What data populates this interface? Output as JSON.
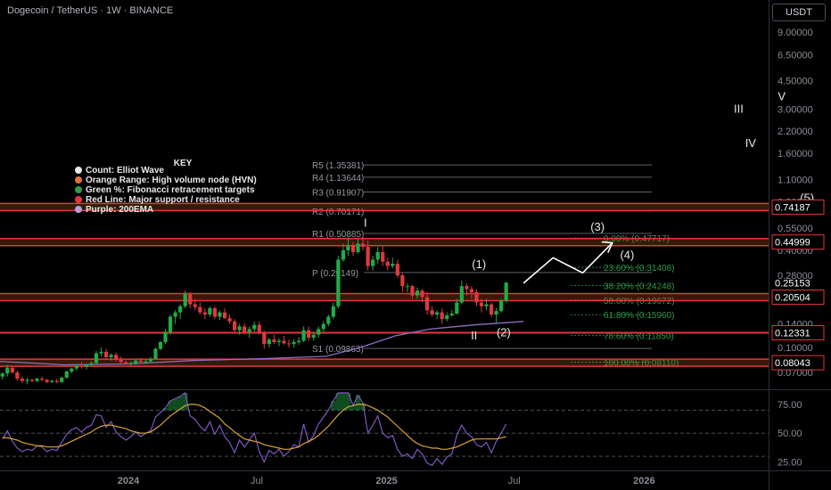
{
  "header": {
    "title": "Dogecoin / TetherUS · 1W · BINANCE",
    "currency": "USDT"
  },
  "colors": {
    "up": "#22ab46",
    "down": "#e0383e",
    "hvn": "#c95a1f",
    "support": "#e0383e",
    "ema": "#8e6fc1",
    "pivot": "#9598a1",
    "fib": "#2f7d44",
    "rsi": "#7e57c2",
    "rsi_ma": "#d9a33a"
  },
  "legend": {
    "title": "KEY",
    "items": [
      {
        "label": "Count: Elliot Wave",
        "color": "#e8e8e8"
      },
      {
        "label": "Orange Range: High volume node (HVN)",
        "color": "#e0703a"
      },
      {
        "label": "Green %: Fibonacci retracement targets",
        "color": "#2e9a4a"
      },
      {
        "label": "Red Line: Major support / resistance",
        "color": "#e0383e"
      },
      {
        "label": "Purple: 200EMA",
        "color": "#b39ddb"
      }
    ]
  },
  "chart_data": [
    {
      "type": "candlestick",
      "scale": "log",
      "ylim": [
        0.055,
        10.5
      ],
      "x_labels": [
        "2024",
        "Jul",
        "2025",
        "Jul",
        "2026"
      ],
      "y_ticks": [
        "9.00000",
        "6.50000",
        "4.50000",
        "3.00000",
        "2.20000",
        "1.60000",
        "1.10000",
        "0.80000",
        "0.55000",
        "0.40000",
        "0.28000",
        "0.14000",
        "0.10000",
        "0.07000"
      ],
      "y_tick_values": [
        9.0,
        6.5,
        4.5,
        3.0,
        2.2,
        1.6,
        1.1,
        0.8,
        0.55,
        0.4,
        0.28,
        0.14,
        0.1,
        0.07
      ],
      "price_labels": [
        {
          "text": "0.74187",
          "value": 0.74187,
          "style": "box"
        },
        {
          "text": "0.44999",
          "value": 0.44999,
          "style": "box"
        },
        {
          "text": "0.25153",
          "value": 0.25153,
          "style": "plain"
        },
        {
          "text": "0.20504",
          "value": 0.20504,
          "style": "box"
        },
        {
          "text": "0.12331",
          "value": 0.12331,
          "style": "box"
        },
        {
          "text": "0.08043",
          "value": 0.08043,
          "style": "box"
        }
      ],
      "levels": [
        {
          "value": 0.74187,
          "kind": "hvn"
        },
        {
          "value": 0.44999,
          "kind": "hvn"
        },
        {
          "value": 0.20504,
          "kind": "hvn"
        },
        {
          "value": 0.12331,
          "kind": "support"
        },
        {
          "value": 0.08043,
          "kind": "hvn"
        }
      ],
      "pivots": [
        {
          "label": "R5 (1.35381)",
          "value": 1.35381
        },
        {
          "label": "R4 (1.13644)",
          "value": 1.13644
        },
        {
          "label": "R3 (0.91907)",
          "value": 0.91907
        },
        {
          "label": "R2 (0.70171)",
          "value": 0.70171
        },
        {
          "label": "R1 (0.50885)",
          "value": 0.50885
        },
        {
          "label": "P (0.29149)",
          "value": 0.29149
        },
        {
          "label": "S1 (0.09863)",
          "value": 0.09863
        }
      ],
      "fibs": [
        {
          "label": "0.00% (0.47717)",
          "value": 0.47717
        },
        {
          "label": "23.60% (0.31408)",
          "value": 0.31408
        },
        {
          "label": "38.20% (0.24248)",
          "value": 0.24248
        },
        {
          "label": "50.00% (0.19672)",
          "value": 0.19672
        },
        {
          "label": "61.80% (0.15960)",
          "value": 0.1596
        },
        {
          "label": "78.60% (0.11850)",
          "value": 0.1185
        },
        {
          "label": "100.00% (0.08110)",
          "value": 0.0811
        }
      ],
      "waves": [
        {
          "label": "I",
          "x": "2024-12-02",
          "y": 0.56
        },
        {
          "label": "II",
          "x": "2025-05-05",
          "y": 0.112
        },
        {
          "label": "III",
          "x": "2026-05-15",
          "y": 2.85
        },
        {
          "label": "IV",
          "x": "2026-06-01",
          "y": 1.75
        },
        {
          "label": "V",
          "x": "2026-07-15",
          "y": 3.4
        },
        {
          "label": "(1)",
          "x": "2025-05-12",
          "y": 0.31
        },
        {
          "label": "(2)",
          "x": "2025-06-16",
          "y": 0.117
        },
        {
          "label": "(3)",
          "x": "2025-10-27",
          "y": 0.53
        },
        {
          "label": "(4)",
          "x": "2025-12-08",
          "y": 0.355
        },
        {
          "label": "(5)",
          "x": "2026-08-20",
          "y": 0.8
        }
      ],
      "projection": [
        {
          "x": "2025-07-14",
          "y": 0.25
        },
        {
          "x": "2025-08-25",
          "y": 0.36
        },
        {
          "x": "2025-10-06",
          "y": 0.29
        },
        {
          "x": "2025-11-17",
          "y": 0.445
        }
      ],
      "ema200": [
        {
          "x": "2023-07-03",
          "y": 0.082
        },
        {
          "x": "2023-10-02",
          "y": 0.078
        },
        {
          "x": "2024-01-01",
          "y": 0.079
        },
        {
          "x": "2024-04-01",
          "y": 0.083
        },
        {
          "x": "2024-07-01",
          "y": 0.085
        },
        {
          "x": "2024-10-07",
          "y": 0.088
        },
        {
          "x": "2024-11-25",
          "y": 0.1
        },
        {
          "x": "2025-01-13",
          "y": 0.118
        },
        {
          "x": "2025-03-03",
          "y": 0.13
        },
        {
          "x": "2025-05-05",
          "y": 0.138
        },
        {
          "x": "2025-07-14",
          "y": 0.145
        }
      ],
      "candles_weekly_from": "2023-07-03",
      "candles": [
        [
          0.066,
          0.07,
          0.063,
          0.069
        ],
        [
          0.069,
          0.078,
          0.066,
          0.075
        ],
        [
          0.075,
          0.077,
          0.069,
          0.07
        ],
        [
          0.07,
          0.072,
          0.062,
          0.064
        ],
        [
          0.064,
          0.066,
          0.06,
          0.062
        ],
        [
          0.062,
          0.065,
          0.059,
          0.063
        ],
        [
          0.063,
          0.064,
          0.061,
          0.062
        ],
        [
          0.062,
          0.065,
          0.061,
          0.064
        ],
        [
          0.064,
          0.066,
          0.062,
          0.063
        ],
        [
          0.063,
          0.064,
          0.06,
          0.061
        ],
        [
          0.061,
          0.063,
          0.06,
          0.062
        ],
        [
          0.062,
          0.064,
          0.06,
          0.061
        ],
        [
          0.061,
          0.066,
          0.06,
          0.065
        ],
        [
          0.065,
          0.072,
          0.064,
          0.071
        ],
        [
          0.071,
          0.075,
          0.069,
          0.074
        ],
        [
          0.074,
          0.079,
          0.072,
          0.077
        ],
        [
          0.077,
          0.081,
          0.074,
          0.076
        ],
        [
          0.076,
          0.079,
          0.073,
          0.078
        ],
        [
          0.078,
          0.082,
          0.076,
          0.08
        ],
        [
          0.08,
          0.095,
          0.079,
          0.092
        ],
        [
          0.092,
          0.1,
          0.088,
          0.094
        ],
        [
          0.094,
          0.098,
          0.085,
          0.087
        ],
        [
          0.087,
          0.092,
          0.083,
          0.09
        ],
        [
          0.09,
          0.093,
          0.082,
          0.084
        ],
        [
          0.084,
          0.088,
          0.08,
          0.081
        ],
        [
          0.081,
          0.083,
          0.078,
          0.079
        ],
        [
          0.079,
          0.082,
          0.077,
          0.08
        ],
        [
          0.08,
          0.085,
          0.078,
          0.083
        ],
        [
          0.083,
          0.086,
          0.079,
          0.081
        ],
        [
          0.081,
          0.084,
          0.079,
          0.082
        ],
        [
          0.082,
          0.087,
          0.08,
          0.085
        ],
        [
          0.085,
          0.1,
          0.084,
          0.098
        ],
        [
          0.098,
          0.11,
          0.096,
          0.108
        ],
        [
          0.108,
          0.13,
          0.105,
          0.125
        ],
        [
          0.125,
          0.16,
          0.12,
          0.155
        ],
        [
          0.155,
          0.17,
          0.14,
          0.165
        ],
        [
          0.165,
          0.185,
          0.15,
          0.18
        ],
        [
          0.18,
          0.225,
          0.175,
          0.215
        ],
        [
          0.215,
          0.22,
          0.175,
          0.185
        ],
        [
          0.185,
          0.2,
          0.17,
          0.178
        ],
        [
          0.178,
          0.19,
          0.16,
          0.165
        ],
        [
          0.165,
          0.175,
          0.15,
          0.16
        ],
        [
          0.16,
          0.18,
          0.155,
          0.175
        ],
        [
          0.175,
          0.18,
          0.15,
          0.155
        ],
        [
          0.155,
          0.17,
          0.148,
          0.165
        ],
        [
          0.165,
          0.175,
          0.15,
          0.152
        ],
        [
          0.152,
          0.16,
          0.14,
          0.145
        ],
        [
          0.145,
          0.15,
          0.125,
          0.128
        ],
        [
          0.128,
          0.14,
          0.12,
          0.135
        ],
        [
          0.135,
          0.142,
          0.12,
          0.125
        ],
        [
          0.125,
          0.135,
          0.115,
          0.13
        ],
        [
          0.13,
          0.145,
          0.125,
          0.138
        ],
        [
          0.138,
          0.145,
          0.12,
          0.122
        ],
        [
          0.122,
          0.128,
          0.098,
          0.105
        ],
        [
          0.105,
          0.115,
          0.1,
          0.112
        ],
        [
          0.112,
          0.12,
          0.105,
          0.108
        ],
        [
          0.108,
          0.114,
          0.102,
          0.11
        ],
        [
          0.11,
          0.118,
          0.104,
          0.106
        ],
        [
          0.106,
          0.112,
          0.1,
          0.105
        ],
        [
          0.105,
          0.112,
          0.1,
          0.108
        ],
        [
          0.108,
          0.116,
          0.104,
          0.11
        ],
        [
          0.11,
          0.135,
          0.108,
          0.128
        ],
        [
          0.128,
          0.135,
          0.11,
          0.115
        ],
        [
          0.115,
          0.125,
          0.11,
          0.12
        ],
        [
          0.12,
          0.135,
          0.115,
          0.13
        ],
        [
          0.13,
          0.145,
          0.125,
          0.14
        ],
        [
          0.14,
          0.16,
          0.135,
          0.155
        ],
        [
          0.155,
          0.19,
          0.15,
          0.18
        ],
        [
          0.18,
          0.37,
          0.175,
          0.35
        ],
        [
          0.35,
          0.44,
          0.34,
          0.4
        ],
        [
          0.4,
          0.48,
          0.37,
          0.43
        ],
        [
          0.43,
          0.45,
          0.37,
          0.39
        ],
        [
          0.39,
          0.47,
          0.38,
          0.44
        ],
        [
          0.44,
          0.48,
          0.4,
          0.42
        ],
        [
          0.42,
          0.46,
          0.3,
          0.32
        ],
        [
          0.32,
          0.37,
          0.3,
          0.35
        ],
        [
          0.35,
          0.42,
          0.33,
          0.39
        ],
        [
          0.39,
          0.43,
          0.32,
          0.34
        ],
        [
          0.34,
          0.36,
          0.3,
          0.32
        ],
        [
          0.32,
          0.36,
          0.31,
          0.33
        ],
        [
          0.33,
          0.35,
          0.27,
          0.28
        ],
        [
          0.28,
          0.29,
          0.22,
          0.24
        ],
        [
          0.24,
          0.25,
          0.22,
          0.24
        ],
        [
          0.24,
          0.245,
          0.2,
          0.21
        ],
        [
          0.21,
          0.235,
          0.2,
          0.225
        ],
        [
          0.225,
          0.23,
          0.19,
          0.205
        ],
        [
          0.205,
          0.22,
          0.16,
          0.17
        ],
        [
          0.17,
          0.18,
          0.155,
          0.16
        ],
        [
          0.16,
          0.17,
          0.15,
          0.165
        ],
        [
          0.165,
          0.175,
          0.14,
          0.15
        ],
        [
          0.15,
          0.165,
          0.145,
          0.158
        ],
        [
          0.158,
          0.17,
          0.155,
          0.162
        ],
        [
          0.162,
          0.2,
          0.16,
          0.19
        ],
        [
          0.19,
          0.26,
          0.185,
          0.24
        ],
        [
          0.24,
          0.25,
          0.21,
          0.23
        ],
        [
          0.23,
          0.24,
          0.2,
          0.22
        ],
        [
          0.22,
          0.23,
          0.18,
          0.19
        ],
        [
          0.19,
          0.2,
          0.165,
          0.18
        ],
        [
          0.18,
          0.2,
          0.17,
          0.185
        ],
        [
          0.185,
          0.19,
          0.155,
          0.16
        ],
        [
          0.16,
          0.175,
          0.142,
          0.168
        ],
        [
          0.168,
          0.2,
          0.165,
          0.195
        ],
        [
          0.195,
          0.255,
          0.19,
          0.252
        ]
      ]
    },
    {
      "type": "line",
      "ylim": [
        20,
        85
      ],
      "y_ticks": [
        "75.00",
        "50.00",
        "25.00"
      ],
      "y_tick_values": [
        75,
        50,
        25
      ],
      "bands": [
        70,
        50,
        30
      ],
      "series": [
        {
          "values": [
            45,
            52,
            43,
            37,
            34,
            36,
            35,
            39,
            38,
            34,
            36,
            35,
            42,
            49,
            53,
            55,
            51,
            55,
            57,
            66,
            65,
            55,
            60,
            51,
            47,
            44,
            47,
            51,
            47,
            50,
            52,
            64,
            68,
            72,
            78,
            80,
            82,
            85,
            65,
            62,
            56,
            52,
            60,
            49,
            57,
            47,
            42,
            33,
            44,
            38,
            44,
            50,
            34,
            25,
            35,
            32,
            36,
            30,
            34,
            40,
            38,
            58,
            42,
            48,
            58,
            64,
            70,
            78,
            90,
            92,
            90,
            74,
            83,
            76,
            50,
            57,
            65,
            50,
            46,
            48,
            36,
            30,
            32,
            28,
            36,
            32,
            24,
            22,
            28,
            23,
            29,
            32,
            48,
            57,
            50,
            47,
            40,
            38,
            42,
            33,
            43,
            50,
            58
          ]
        },
        {
          "values": [
            46,
            46,
            45,
            44,
            42,
            41,
            40,
            39,
            39,
            38,
            38,
            38,
            39,
            41,
            43,
            45,
            47,
            49,
            51,
            54,
            56,
            57,
            57,
            56,
            55,
            54,
            52,
            51,
            50,
            50,
            51,
            54,
            57,
            61,
            65,
            68,
            71,
            74,
            75,
            75,
            74,
            72,
            69,
            66,
            63,
            58,
            55,
            51,
            48,
            45,
            44,
            43,
            42,
            40,
            39,
            38,
            37,
            36,
            36,
            37,
            38,
            41,
            43,
            45,
            48,
            52,
            56,
            61,
            66,
            70,
            73,
            74,
            75,
            75,
            74,
            72,
            70,
            67,
            64,
            60,
            56,
            52,
            48,
            44,
            41,
            39,
            38,
            37,
            37,
            36,
            36,
            37,
            38,
            40,
            42,
            44,
            45,
            45,
            45,
            45,
            45,
            46,
            47
          ]
        }
      ]
    }
  ]
}
